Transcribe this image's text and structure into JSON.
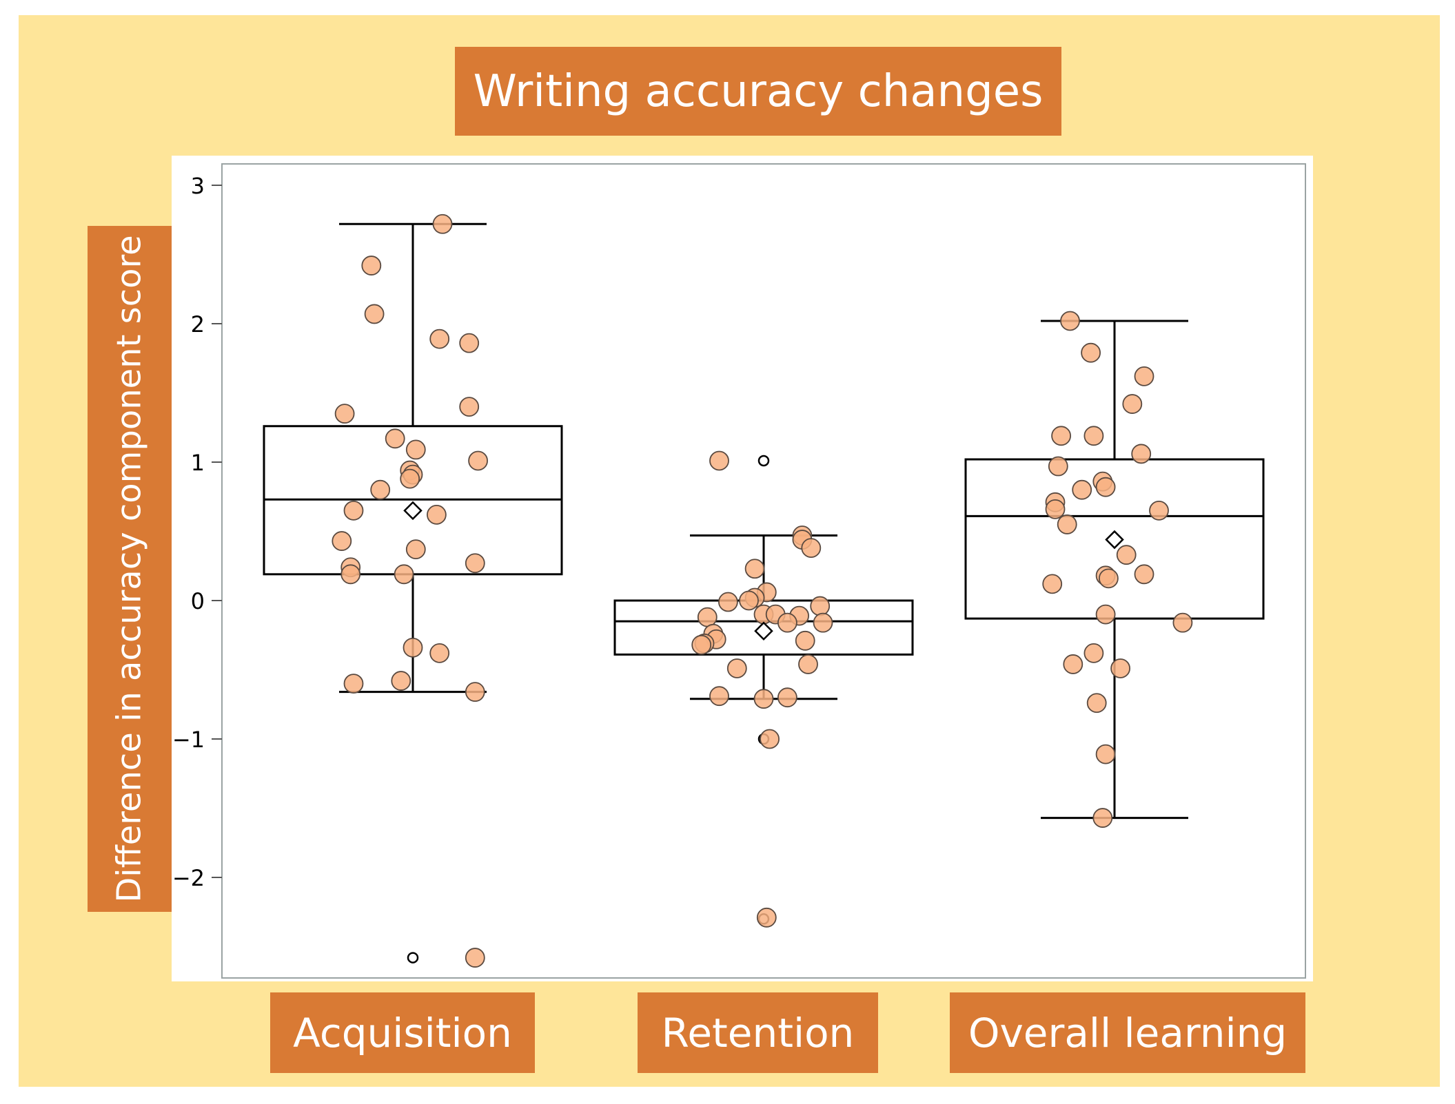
{
  "chart_data": {
    "type": "box",
    "title": "Writing accuracy changes",
    "ylabel": "Difference in accuracy component score",
    "xlabel": "",
    "categories": [
      "Acquisition",
      "Retention",
      "Overall learning"
    ],
    "ylim": [
      -2.6,
      3.15
    ],
    "yticks": [
      3,
      2,
      1,
      0,
      -1,
      -2
    ],
    "ytick_labels": [
      "3",
      "2",
      "1",
      "0",
      "−1",
      "−2"
    ],
    "grid": false,
    "colors": {
      "point_fill": "#f8b283",
      "point_edge": "#5a4a40",
      "box": "#000000",
      "frame": "#9aa3a3",
      "label_bg": "#d97a34",
      "backdrop": "#fee599"
    },
    "series": [
      {
        "category": "Acquisition",
        "q1": 0.19,
        "median": 0.73,
        "q3": 1.26,
        "mean": 0.65,
        "whisker_low": -0.66,
        "whisker_high": 2.72,
        "outliers": [
          -2.58
        ],
        "points": [
          {
            "x": 0.1,
            "y": 2.72
          },
          {
            "x": -0.14,
            "y": 2.42
          },
          {
            "x": -0.13,
            "y": 2.07
          },
          {
            "x": 0.09,
            "y": 1.89
          },
          {
            "x": 0.19,
            "y": 1.86
          },
          {
            "x": 0.19,
            "y": 1.4
          },
          {
            "x": -0.23,
            "y": 1.35
          },
          {
            "x": -0.06,
            "y": 1.17
          },
          {
            "x": 0.01,
            "y": 1.09
          },
          {
            "x": 0.22,
            "y": 1.01
          },
          {
            "x": -0.01,
            "y": 0.94
          },
          {
            "x": 0.0,
            "y": 0.91
          },
          {
            "x": -0.01,
            "y": 0.88
          },
          {
            "x": -0.11,
            "y": 0.8
          },
          {
            "x": -0.2,
            "y": 0.65
          },
          {
            "x": 0.08,
            "y": 0.62
          },
          {
            "x": -0.24,
            "y": 0.43
          },
          {
            "x": 0.01,
            "y": 0.37
          },
          {
            "x": 0.21,
            "y": 0.27
          },
          {
            "x": -0.21,
            "y": 0.24
          },
          {
            "x": -0.21,
            "y": 0.19
          },
          {
            "x": -0.03,
            "y": 0.19
          },
          {
            "x": 0.0,
            "y": -0.34
          },
          {
            "x": 0.09,
            "y": -0.38
          },
          {
            "x": -0.2,
            "y": -0.6
          },
          {
            "x": -0.04,
            "y": -0.58
          },
          {
            "x": 0.21,
            "y": -0.66
          },
          {
            "x": 0.21,
            "y": -2.58
          }
        ]
      },
      {
        "category": "Retention",
        "q1": -0.39,
        "median": -0.15,
        "q3": 0.0,
        "mean": -0.22,
        "whisker_low": -0.71,
        "whisker_high": 0.47,
        "outliers": [
          1.01,
          -1.0,
          -2.3
        ],
        "points": [
          {
            "x": -0.15,
            "y": 1.01
          },
          {
            "x": 0.13,
            "y": 0.47
          },
          {
            "x": 0.13,
            "y": 0.44
          },
          {
            "x": 0.16,
            "y": 0.38
          },
          {
            "x": -0.03,
            "y": 0.23
          },
          {
            "x": 0.01,
            "y": 0.06
          },
          {
            "x": -0.03,
            "y": 0.02
          },
          {
            "x": -0.05,
            "y": 0.0
          },
          {
            "x": -0.12,
            "y": -0.01
          },
          {
            "x": 0.19,
            "y": -0.04
          },
          {
            "x": 0.0,
            "y": -0.1
          },
          {
            "x": 0.04,
            "y": -0.1
          },
          {
            "x": 0.12,
            "y": -0.11
          },
          {
            "x": -0.19,
            "y": -0.12
          },
          {
            "x": 0.08,
            "y": -0.16
          },
          {
            "x": 0.2,
            "y": -0.16
          },
          {
            "x": -0.17,
            "y": -0.24
          },
          {
            "x": -0.16,
            "y": -0.28
          },
          {
            "x": 0.14,
            "y": -0.29
          },
          {
            "x": -0.2,
            "y": -0.31
          },
          {
            "x": -0.21,
            "y": -0.32
          },
          {
            "x": 0.15,
            "y": -0.46
          },
          {
            "x": -0.09,
            "y": -0.49
          },
          {
            "x": -0.15,
            "y": -0.69
          },
          {
            "x": 0.0,
            "y": -0.71
          },
          {
            "x": 0.08,
            "y": -0.7
          },
          {
            "x": 0.02,
            "y": -1.0
          },
          {
            "x": 0.01,
            "y": -2.29
          }
        ]
      },
      {
        "category": "Overall learning",
        "q1": -0.13,
        "median": 0.61,
        "q3": 1.02,
        "mean": 0.44,
        "whisker_low": -1.57,
        "whisker_high": 2.02,
        "outliers": [],
        "points": [
          {
            "x": -0.15,
            "y": 2.02
          },
          {
            "x": -0.08,
            "y": 1.79
          },
          {
            "x": 0.1,
            "y": 1.62
          },
          {
            "x": 0.06,
            "y": 1.42
          },
          {
            "x": -0.18,
            "y": 1.19
          },
          {
            "x": -0.07,
            "y": 1.19
          },
          {
            "x": 0.09,
            "y": 1.06
          },
          {
            "x": -0.19,
            "y": 0.97
          },
          {
            "x": -0.04,
            "y": 0.86
          },
          {
            "x": -0.11,
            "y": 0.8
          },
          {
            "x": -0.03,
            "y": 0.82
          },
          {
            "x": -0.2,
            "y": 0.71
          },
          {
            "x": -0.2,
            "y": 0.66
          },
          {
            "x": 0.15,
            "y": 0.65
          },
          {
            "x": -0.16,
            "y": 0.55
          },
          {
            "x": 0.04,
            "y": 0.33
          },
          {
            "x": 0.1,
            "y": 0.19
          },
          {
            "x": -0.03,
            "y": 0.18
          },
          {
            "x": -0.02,
            "y": 0.16
          },
          {
            "x": -0.21,
            "y": 0.12
          },
          {
            "x": -0.03,
            "y": -0.1
          },
          {
            "x": 0.23,
            "y": -0.16
          },
          {
            "x": -0.14,
            "y": -0.46
          },
          {
            "x": -0.07,
            "y": -0.38
          },
          {
            "x": 0.02,
            "y": -0.49
          },
          {
            "x": -0.06,
            "y": -0.74
          },
          {
            "x": -0.03,
            "y": -1.11
          },
          {
            "x": -0.04,
            "y": -1.57
          }
        ]
      }
    ]
  }
}
